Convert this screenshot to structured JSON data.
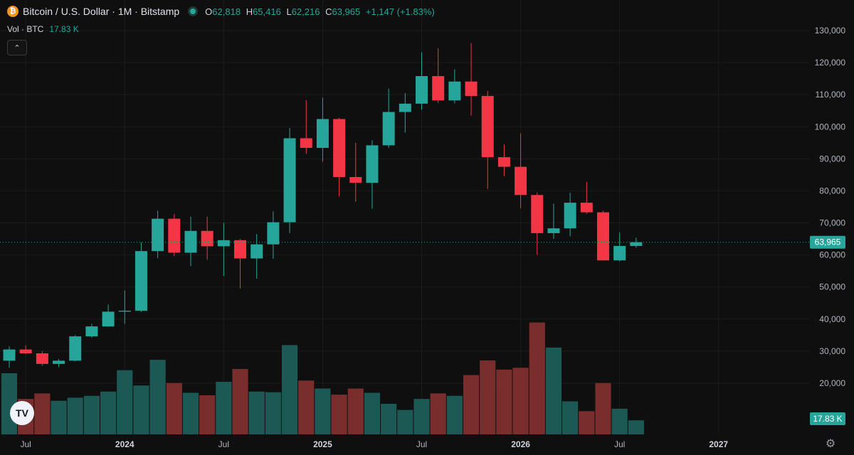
{
  "header": {
    "coin_icon": "bitcoin-icon",
    "coin_glyph": "₿",
    "title": "Bitcoin / U.S. Dollar · 1M · Bitstamp",
    "ohlc": {
      "o_label": "O",
      "o": "62,818",
      "h_label": "H",
      "h": "65,416",
      "l_label": "L",
      "l": "62,216",
      "c_label": "C",
      "c": "63,965",
      "change": "+1,147 (+1.83%)"
    }
  },
  "volume_legend": {
    "label": "Vol · BTC",
    "value": "17.83 K"
  },
  "controls": {
    "collapse_glyph": "⌃",
    "logo_text": "TV",
    "settings_glyph": "⚙"
  },
  "colors": {
    "up": "#26a69a",
    "down": "#f23645",
    "up_vol": "#1c5954",
    "down_vol": "#7a2d2d",
    "background": "#0f0f0f",
    "grid": "#1c1c1c",
    "text": "#b2b5be"
  },
  "chart_data": {
    "type": "candlestick",
    "title": "Bitcoin / U.S. Dollar · 1M · Bitstamp",
    "ylim": [
      10000,
      130000
    ],
    "y_ticks": [
      "130,000",
      "120,000",
      "110,000",
      "100,000",
      "90,000",
      "80,000",
      "70,000",
      "60,000",
      "50,000",
      "40,000",
      "30,000",
      "20,000"
    ],
    "x_ticks": [
      "Jul",
      "2024",
      "Jul",
      "2025",
      "Jul",
      "2026",
      "Jul",
      "2027"
    ],
    "last_price_label": "63,965",
    "last_volume_label": "17.83 K",
    "candles": [
      {
        "month": "2023-06",
        "o": 27000,
        "h": 31500,
        "l": 24800,
        "c": 30500,
        "vol": 100
      },
      {
        "month": "2023-07",
        "o": 30500,
        "h": 31800,
        "l": 29000,
        "c": 29300,
        "vol": 58
      },
      {
        "month": "2023-08",
        "o": 29300,
        "h": 30000,
        "l": 25400,
        "c": 26000,
        "vol": 67
      },
      {
        "month": "2023-09",
        "o": 26000,
        "h": 27500,
        "l": 25000,
        "c": 27000,
        "vol": 55
      },
      {
        "month": "2023-10",
        "o": 27000,
        "h": 35000,
        "l": 26800,
        "c": 34600,
        "vol": 60
      },
      {
        "month": "2023-11",
        "o": 34600,
        "h": 38500,
        "l": 34200,
        "c": 37700,
        "vol": 63
      },
      {
        "month": "2023-12",
        "o": 37700,
        "h": 44500,
        "l": 37600,
        "c": 42300,
        "vol": 70
      },
      {
        "month": "2024-01",
        "o": 42300,
        "h": 48900,
        "l": 38500,
        "c": 42600,
        "vol": 105
      },
      {
        "month": "2024-02",
        "o": 42600,
        "h": 63900,
        "l": 42200,
        "c": 61200,
        "vol": 80
      },
      {
        "month": "2024-03",
        "o": 61200,
        "h": 73800,
        "l": 59000,
        "c": 71300,
        "vol": 122
      },
      {
        "month": "2024-04",
        "o": 71300,
        "h": 72800,
        "l": 59600,
        "c": 60700,
        "vol": 84
      },
      {
        "month": "2024-05",
        "o": 60700,
        "h": 71900,
        "l": 56500,
        "c": 67500,
        "vol": 68
      },
      {
        "month": "2024-06",
        "o": 67500,
        "h": 71900,
        "l": 58500,
        "c": 62700,
        "vol": 64
      },
      {
        "month": "2024-07",
        "o": 62700,
        "h": 70000,
        "l": 53500,
        "c": 64600,
        "vol": 86
      },
      {
        "month": "2024-08",
        "o": 64600,
        "h": 65000,
        "l": 49500,
        "c": 58900,
        "vol": 107
      },
      {
        "month": "2024-09",
        "o": 58900,
        "h": 66500,
        "l": 52600,
        "c": 63300,
        "vol": 70
      },
      {
        "month": "2024-10",
        "o": 63300,
        "h": 73600,
        "l": 58800,
        "c": 70200,
        "vol": 69
      },
      {
        "month": "2024-11",
        "o": 70200,
        "h": 99600,
        "l": 66800,
        "c": 96400,
        "vol": 146
      },
      {
        "month": "2024-12",
        "o": 96400,
        "h": 108300,
        "l": 91500,
        "c": 93400,
        "vol": 88
      },
      {
        "month": "2025-01",
        "o": 93400,
        "h": 109100,
        "l": 89100,
        "c": 102400,
        "vol": 75
      },
      {
        "month": "2025-02",
        "o": 102400,
        "h": 102800,
        "l": 78200,
        "c": 84300,
        "vol": 65
      },
      {
        "month": "2025-03",
        "o": 84300,
        "h": 95000,
        "l": 76600,
        "c": 82500,
        "vol": 75
      },
      {
        "month": "2025-04",
        "o": 82500,
        "h": 95800,
        "l": 74400,
        "c": 94200,
        "vol": 68
      },
      {
        "month": "2025-05",
        "o": 94200,
        "h": 111900,
        "l": 93400,
        "c": 104600,
        "vol": 50
      },
      {
        "month": "2025-06",
        "o": 104600,
        "h": 110500,
        "l": 98200,
        "c": 107200,
        "vol": 40
      },
      {
        "month": "2025-07",
        "o": 107200,
        "h": 123200,
        "l": 105300,
        "c": 115800,
        "vol": 58
      },
      {
        "month": "2025-08",
        "o": 115800,
        "h": 124500,
        "l": 107400,
        "c": 108200,
        "vol": 67
      },
      {
        "month": "2025-09",
        "o": 108200,
        "h": 117900,
        "l": 107300,
        "c": 114100,
        "vol": 63
      },
      {
        "month": "2025-10",
        "o": 114100,
        "h": 126100,
        "l": 103500,
        "c": 109600,
        "vol": 97
      },
      {
        "month": "2025-11",
        "o": 109600,
        "h": 111200,
        "l": 80600,
        "c": 90500,
        "vol": 121
      },
      {
        "month": "2025-12",
        "o": 90500,
        "h": 94500,
        "l": 84500,
        "c": 87500,
        "vol": 106
      },
      {
        "month": "2026-01",
        "o": 87500,
        "h": 97900,
        "l": 74600,
        "c": 78700,
        "vol": 109
      },
      {
        "month": "2026-02",
        "o": 78700,
        "h": 79500,
        "l": 60000,
        "c": 66800,
        "vol": 183
      },
      {
        "month": "2026-03",
        "o": 66800,
        "h": 76000,
        "l": 65000,
        "c": 68300,
        "vol": 142
      },
      {
        "month": "2026-04",
        "o": 68300,
        "h": 79400,
        "l": 65800,
        "c": 76300,
        "vol": 54
      },
      {
        "month": "2026-05",
        "o": 76300,
        "h": 82800,
        "l": 72800,
        "c": 73300,
        "vol": 38
      },
      {
        "month": "2026-06",
        "o": 73300,
        "h": 73800,
        "l": 58200,
        "c": 58300,
        "vol": 84
      },
      {
        "month": "2026-07",
        "o": 58300,
        "h": 67000,
        "l": 58000,
        "c": 62800,
        "vol": 42
      },
      {
        "month": "2026-08",
        "o": 62800,
        "h": 65400,
        "l": 62200,
        "c": 63965,
        "vol": 23
      }
    ]
  }
}
